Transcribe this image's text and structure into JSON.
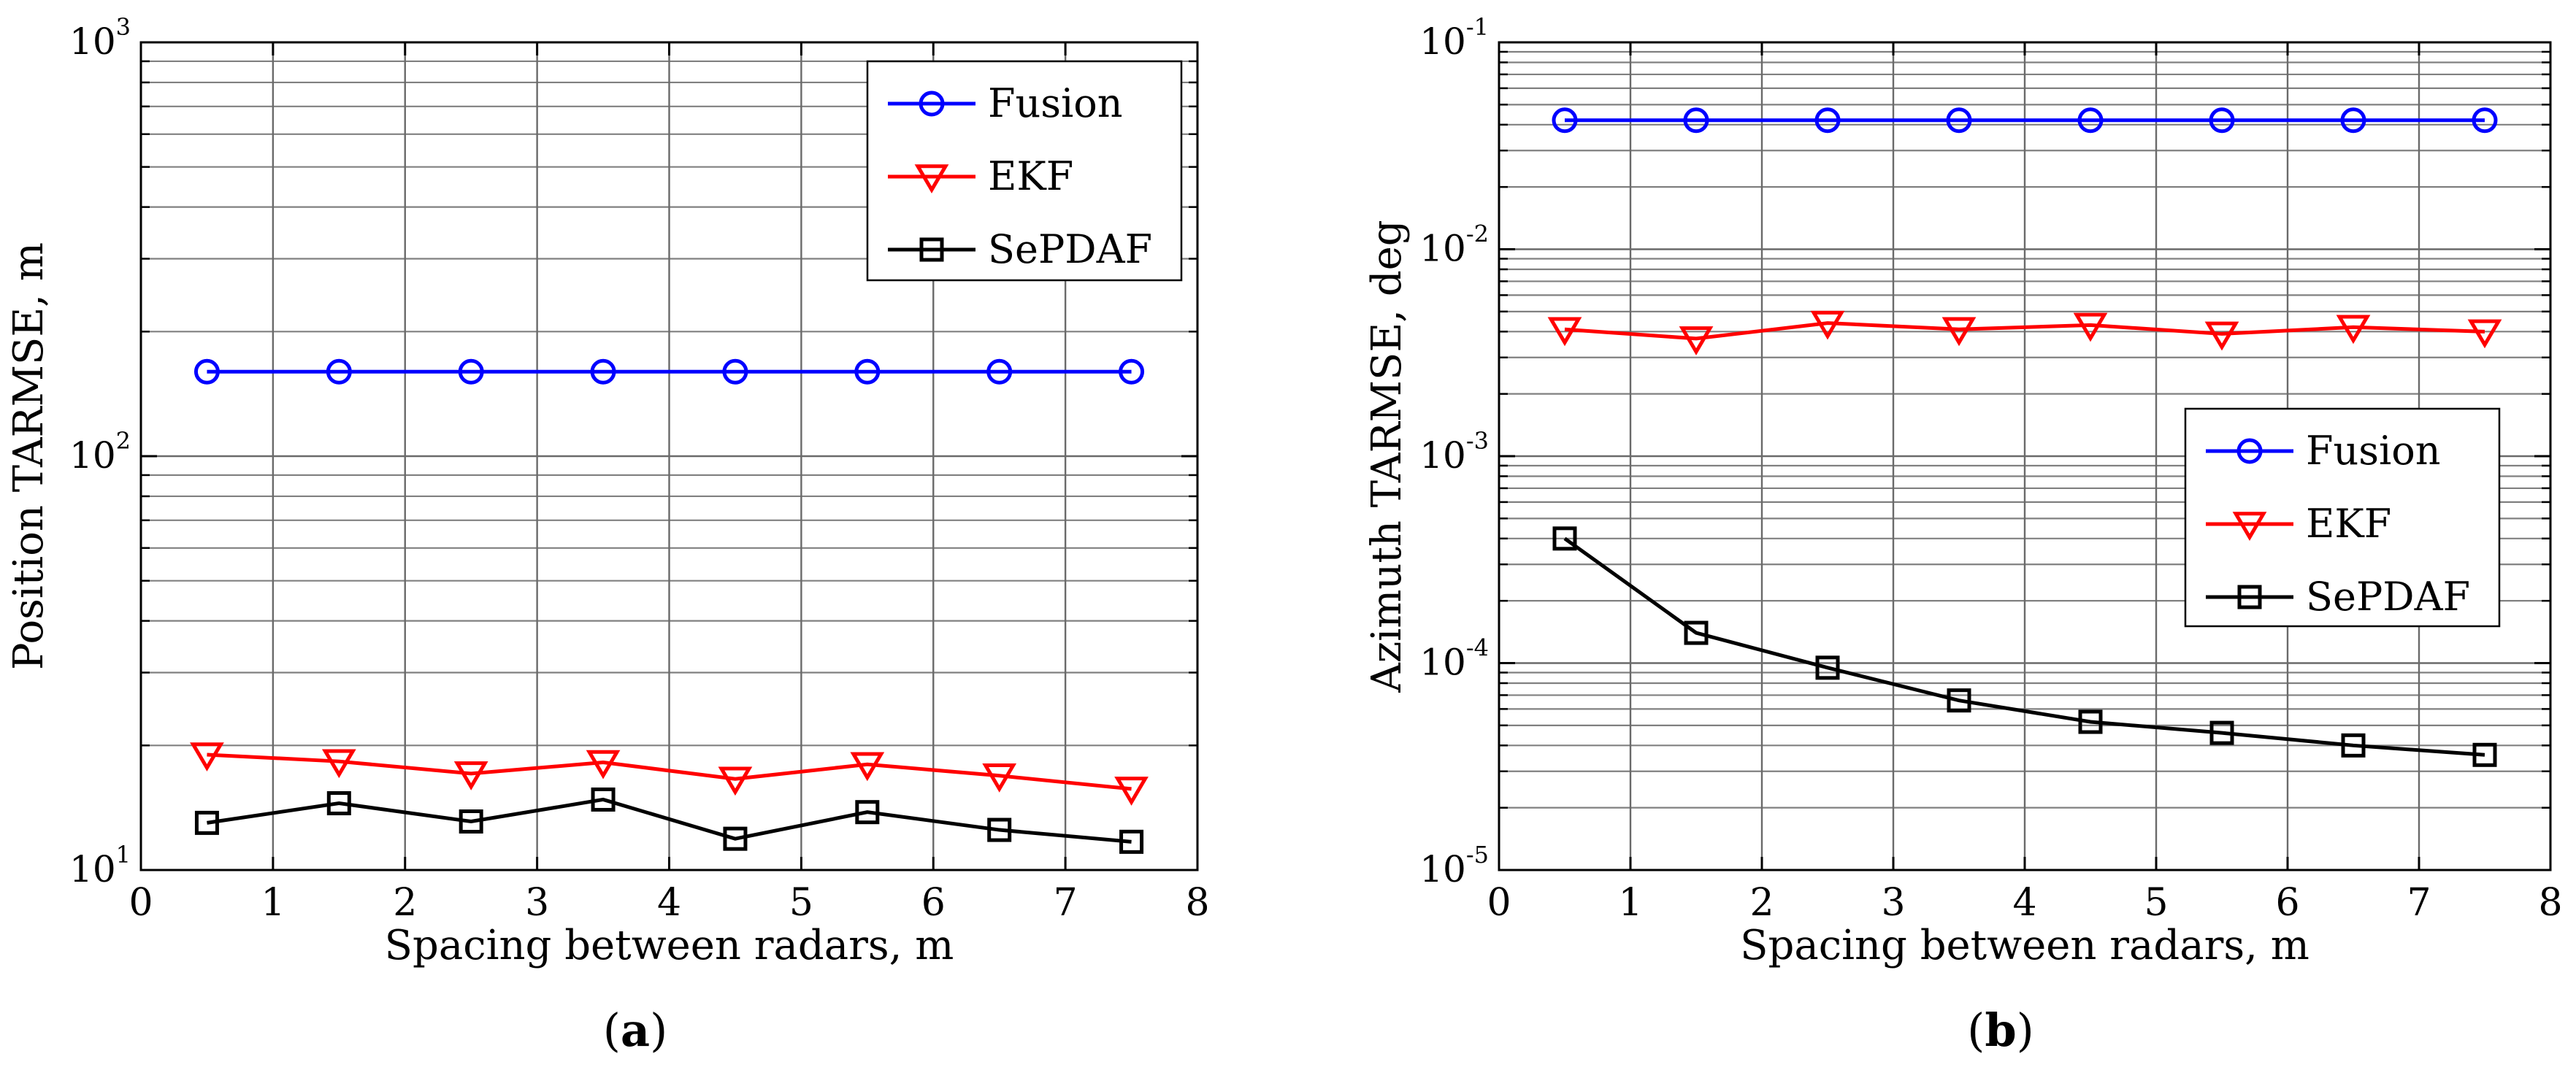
{
  "chart_data": [
    {
      "type": "line",
      "yscale": "log",
      "xlabel": "Spacing between radars, m",
      "ylabel": "Position TARMSE, m",
      "xlim": [
        0,
        8
      ],
      "ylim": [
        10,
        1000
      ],
      "xticks": [
        "0",
        "1",
        "2",
        "3",
        "4",
        "5",
        "6",
        "7",
        "8"
      ],
      "yticks": [
        {
          "base": "10",
          "exp": "1"
        },
        {
          "base": "10",
          "exp": "2"
        },
        {
          "base": "10",
          "exp": "3"
        }
      ],
      "legend_position": "top-right",
      "x": [
        0.5,
        1.5,
        2.5,
        3.5,
        4.5,
        5.5,
        6.5,
        7.5
      ],
      "series": [
        {
          "name": "Fusion",
          "color": "#0000ff",
          "marker": "circle",
          "values": [
            160,
            160,
            160,
            160,
            160,
            160,
            160,
            160
          ]
        },
        {
          "name": "EKF",
          "color": "#ff0000",
          "marker": "triangle-down",
          "values": [
            19,
            18.3,
            17.1,
            18.2,
            16.6,
            18.0,
            16.9,
            15.7
          ]
        },
        {
          "name": "SePDAF",
          "color": "#000000",
          "marker": "square",
          "values": [
            13.0,
            14.5,
            13.1,
            14.8,
            11.9,
            13.8,
            12.5,
            11.7
          ]
        }
      ],
      "caption": {
        "open": "(",
        "letter": "a",
        "close": ")"
      }
    },
    {
      "type": "line",
      "yscale": "log",
      "xlabel": "Spacing between radars, m",
      "ylabel": "Azimuth TARMSE, deg",
      "xlim": [
        0,
        8
      ],
      "ylim": [
        1e-05,
        0.1
      ],
      "xticks": [
        "0",
        "1",
        "2",
        "3",
        "4",
        "5",
        "6",
        "7",
        "8"
      ],
      "yticks": [
        {
          "base": "10",
          "exp": "-5"
        },
        {
          "base": "10",
          "exp": "-4"
        },
        {
          "base": "10",
          "exp": "-3"
        },
        {
          "base": "10",
          "exp": "-2"
        },
        {
          "base": "10",
          "exp": "-1"
        }
      ],
      "legend_position": "right-middle",
      "x": [
        0.5,
        1.5,
        2.5,
        3.5,
        4.5,
        5.5,
        6.5,
        7.5
      ],
      "series": [
        {
          "name": "Fusion",
          "color": "#0000ff",
          "marker": "circle",
          "values": [
            0.042,
            0.042,
            0.042,
            0.042,
            0.042,
            0.042,
            0.042,
            0.042
          ]
        },
        {
          "name": "EKF",
          "color": "#ff0000",
          "marker": "triangle-down",
          "values": [
            0.0041,
            0.0037,
            0.0044,
            0.0041,
            0.0043,
            0.0039,
            0.0042,
            0.004
          ]
        },
        {
          "name": "SePDAF",
          "color": "#000000",
          "marker": "square",
          "values": [
            0.0004,
            0.00014,
            9.5e-05,
            6.6e-05,
            5.2e-05,
            4.6e-05,
            4e-05,
            3.6e-05
          ]
        }
      ],
      "caption": {
        "open": "(",
        "letter": "b",
        "close": ")"
      }
    }
  ]
}
